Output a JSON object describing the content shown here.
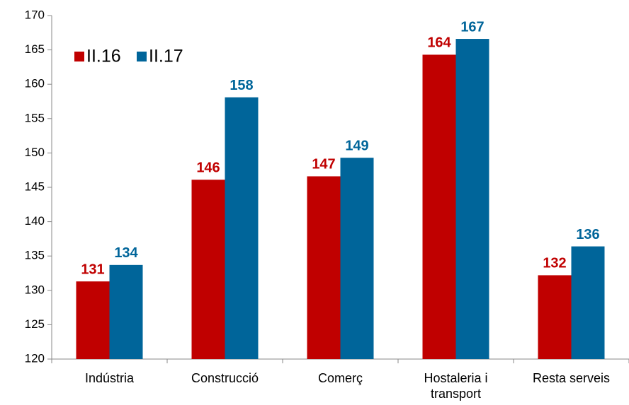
{
  "chart_data": {
    "type": "bar",
    "categories": [
      "Indústria",
      "Construcció",
      "Comerç",
      "Hostaleria i transport",
      "Resta serveis"
    ],
    "series": [
      {
        "name": "II.16",
        "color": "#c00000",
        "values": [
          131.3,
          146.1,
          146.6,
          164.3,
          132.2
        ],
        "value_labels": [
          "131",
          "146",
          "147",
          "164",
          "132"
        ]
      },
      {
        "name": "II.17",
        "color": "#00659a",
        "values": [
          133.7,
          158.1,
          149.3,
          166.6,
          136.4
        ],
        "value_labels": [
          "134",
          "158",
          "149",
          "167",
          "136"
        ]
      }
    ],
    "ylim": [
      120,
      170
    ],
    "yticks": [
      120,
      125,
      130,
      135,
      140,
      145,
      150,
      155,
      160,
      165,
      170
    ],
    "legend": "upper left"
  }
}
